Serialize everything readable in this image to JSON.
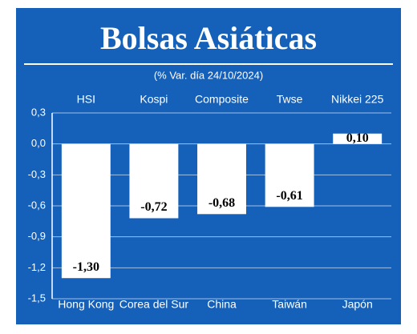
{
  "chart_data": {
    "type": "bar",
    "title": "Bolsas Asiáticas",
    "subtitle": "(% Var. día 24/10/2024)",
    "categories": [
      "Hong Kong",
      "Corea del Sur",
      "China",
      "Taiwán",
      "Japón"
    ],
    "index_names": [
      "HSI",
      "Kospi",
      "Composite",
      "Twse",
      "Nikkei 225"
    ],
    "values": [
      -1.3,
      -0.72,
      -0.68,
      -0.61,
      0.1
    ],
    "value_labels": [
      "-1,30",
      "-0,72",
      "-0,68",
      "-0,61",
      "0,10"
    ],
    "color": "#ffffff",
    "background": "#1560b8",
    "ylim": [
      -1.5,
      0.3
    ],
    "yticks": [
      {
        "value": 0.3,
        "label": "0,3"
      },
      {
        "value": 0,
        "label": "0,0"
      },
      {
        "value": -0.3,
        "label": "-0,3"
      },
      {
        "value": -0.6,
        "label": "-0,6"
      },
      {
        "value": -0.9,
        "label": "-0,9"
      },
      {
        "value": -1.2,
        "label": "-1,2"
      },
      {
        "value": -1.5,
        "label": "-1,5"
      }
    ],
    "grid": true
  }
}
